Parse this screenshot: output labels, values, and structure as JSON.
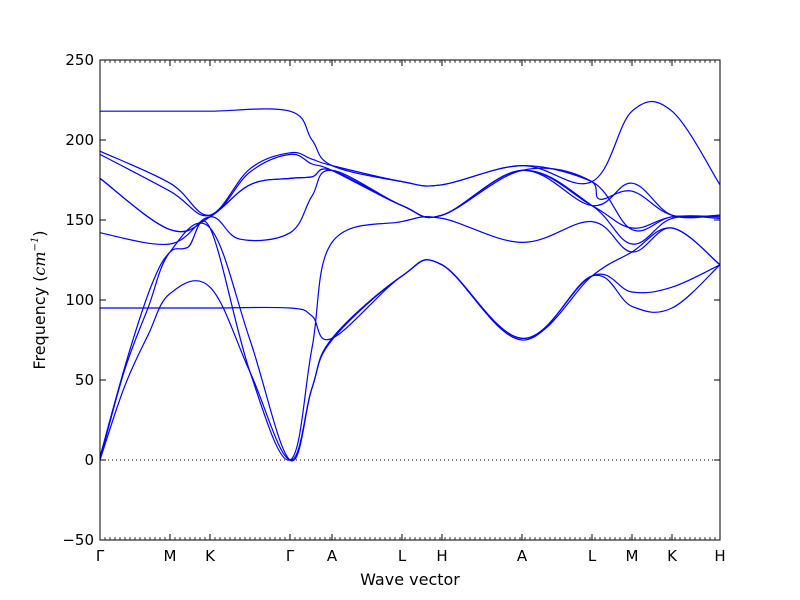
{
  "chart_data": {
    "type": "line",
    "title": "",
    "xlabel": "Wave vector",
    "ylabel": "Frequency (",
    "ylabel_math": "cm",
    "ylabel_sup": "−1",
    "ylabel_close": ")",
    "ylim": [
      -50,
      250
    ],
    "y_ticks": [
      "−50",
      "0",
      "50",
      "100",
      "150",
      "200",
      "250"
    ],
    "y_tick_values": [
      -50,
      0,
      50,
      100,
      150,
      200,
      250
    ],
    "x_range": [
      0,
      15.5
    ],
    "x_ticks": [
      {
        "label": "Γ",
        "x": 0
      },
      {
        "label": "M",
        "x": 1.75
      },
      {
        "label": "K",
        "x": 2.75
      },
      {
        "label": "Γ",
        "x": 4.75
      },
      {
        "label": "A",
        "x": 5.8
      },
      {
        "label": "L",
        "x": 7.55
      },
      {
        "label": "H",
        "x": 8.55
      },
      {
        "label": "A",
        "x": 10.55
      },
      {
        "label": "L",
        "x": 12.3
      },
      {
        "label": "M",
        "x": 13.3
      },
      {
        "label": "K",
        "x": 14.3
      },
      {
        "label": "H",
        "x": 15.5
      }
    ],
    "zero_line": true,
    "line_color": "#0000ff",
    "series": [
      {
        "values": [
          [
            0,
            0
          ],
          [
            0.6,
            45
          ],
          [
            1.2,
            78
          ],
          [
            1.75,
            104
          ],
          [
            2.75,
            108
          ],
          [
            3.75,
            55
          ],
          [
            4.75,
            0
          ],
          [
            5.3,
            45
          ],
          [
            5.8,
            75
          ],
          [
            7.55,
            115
          ],
          [
            8.55,
            122
          ],
          [
            10.55,
            75
          ],
          [
            12.3,
            115
          ],
          [
            13.3,
            96
          ],
          [
            14.3,
            95
          ],
          [
            15.5,
            122
          ]
        ]
      },
      {
        "values": [
          [
            0,
            0
          ],
          [
            0.6,
            55
          ],
          [
            1.2,
            95
          ],
          [
            1.75,
            130
          ],
          [
            2.75,
            145
          ],
          [
            3.75,
            75
          ],
          [
            4.75,
            0
          ],
          [
            5.3,
            45
          ],
          [
            5.8,
            76
          ],
          [
            7.55,
            115
          ],
          [
            8.55,
            122
          ],
          [
            10.55,
            76
          ],
          [
            12.3,
            115
          ],
          [
            13.3,
            105
          ],
          [
            14.3,
            108
          ],
          [
            15.5,
            122
          ]
        ]
      },
      {
        "values": [
          [
            0,
            2
          ],
          [
            0.7,
            65
          ],
          [
            1.3,
            110
          ],
          [
            1.75,
            130
          ],
          [
            2.2,
            133
          ],
          [
            2.75,
            145
          ],
          [
            3.75,
            55
          ],
          [
            4.75,
            0
          ],
          [
            5.3,
            70
          ],
          [
            5.8,
            136
          ],
          [
            7.55,
            149
          ],
          [
            8.55,
            151
          ],
          [
            10.55,
            136
          ],
          [
            12.3,
            149
          ],
          [
            13.3,
            130
          ],
          [
            14.3,
            145
          ],
          [
            15.5,
            122
          ]
        ]
      },
      {
        "values": [
          [
            0,
            95
          ],
          [
            1.75,
            95
          ],
          [
            2.75,
            95
          ],
          [
            4.75,
            95
          ],
          [
            5.3,
            90
          ],
          [
            5.8,
            76
          ],
          [
            7.55,
            115
          ],
          [
            8.55,
            122
          ],
          [
            10.55,
            76
          ],
          [
            12.3,
            115
          ],
          [
            13.3,
            130
          ],
          [
            14.3,
            145
          ],
          [
            15.5,
            122
          ]
        ]
      },
      {
        "values": [
          [
            0,
            142
          ],
          [
            1.75,
            135
          ],
          [
            2.75,
            152
          ],
          [
            3.5,
            138
          ],
          [
            4.75,
            142
          ],
          [
            5.3,
            165
          ],
          [
            5.8,
            181
          ],
          [
            7.55,
            159
          ],
          [
            8.55,
            153
          ],
          [
            10.55,
            181
          ],
          [
            12.3,
            159
          ],
          [
            13.3,
            145
          ],
          [
            14.3,
            152
          ],
          [
            15.5,
            152
          ]
        ]
      },
      {
        "values": [
          [
            0,
            176
          ],
          [
            1.75,
            144
          ],
          [
            2.75,
            152
          ],
          [
            3.75,
            172
          ],
          [
            4.75,
            176
          ],
          [
            5.3,
            177
          ],
          [
            5.8,
            181
          ],
          [
            7.55,
            159
          ],
          [
            8.55,
            153
          ],
          [
            10.55,
            181
          ],
          [
            12.3,
            159
          ],
          [
            13.3,
            135
          ],
          [
            14.3,
            151
          ],
          [
            15.5,
            151
          ]
        ]
      },
      {
        "values": [
          [
            0,
            191
          ],
          [
            1.75,
            168
          ],
          [
            2.75,
            153
          ],
          [
            3.75,
            182
          ],
          [
            4.75,
            192
          ],
          [
            5.3,
            188
          ],
          [
            5.8,
            184
          ],
          [
            7.55,
            174
          ],
          [
            8.55,
            172
          ],
          [
            10.55,
            184
          ],
          [
            12.3,
            174
          ],
          [
            12.5,
            163
          ],
          [
            13.3,
            168
          ],
          [
            14.3,
            153
          ],
          [
            15.5,
            153
          ]
        ]
      },
      {
        "values": [
          [
            0,
            193
          ],
          [
            1.75,
            173
          ],
          [
            2.75,
            153
          ],
          [
            3.75,
            180
          ],
          [
            4.75,
            191
          ],
          [
            5.3,
            185
          ],
          [
            5.8,
            181
          ],
          [
            7.55,
            159
          ],
          [
            8.55,
            153
          ],
          [
            10.55,
            181
          ],
          [
            12.3,
            159
          ],
          [
            13.3,
            173
          ],
          [
            14.3,
            153
          ],
          [
            15.5,
            153
          ]
        ]
      },
      {
        "values": [
          [
            0,
            218
          ],
          [
            1.75,
            218
          ],
          [
            2.75,
            218
          ],
          [
            4.75,
            218
          ],
          [
            5.3,
            200
          ],
          [
            5.8,
            184
          ],
          [
            7.55,
            174
          ],
          [
            8.55,
            172
          ],
          [
            10.55,
            184
          ],
          [
            12.3,
            174
          ],
          [
            13.3,
            218
          ],
          [
            14.3,
            218
          ],
          [
            15.5,
            172
          ]
        ]
      },
      {
        "values": [
          [
            0,
            176
          ],
          [
            1.75,
            144
          ],
          [
            2.75,
            152
          ],
          [
            3.75,
            172
          ],
          [
            4.75,
            176
          ],
          [
            5.3,
            177
          ],
          [
            5.8,
            181
          ],
          [
            7.55,
            159
          ],
          [
            8.55,
            153
          ],
          [
            10.55,
            181
          ],
          [
            12.3,
            174
          ],
          [
            13.3,
            144
          ],
          [
            14.3,
            152
          ],
          [
            15.5,
            152
          ]
        ]
      }
    ]
  }
}
